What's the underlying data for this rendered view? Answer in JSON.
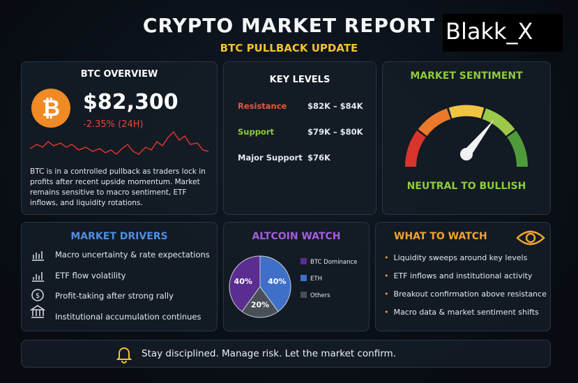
{
  "header": {
    "title": "CRYPTO MARKET REPORT",
    "subtitle": "BTC PULLBACK UPDATE",
    "watermark": "Blakk_X"
  },
  "btc_overview": {
    "title": "BTC OVERVIEW",
    "price": "$82,300",
    "change": "-2.35% (24H)",
    "text": "BTC is in a controlled pullback as traders lock in profits after recent upside momentum. Market remains sensitive to macro sentiment, ETF inflows, and liquidity rotations."
  },
  "key_levels": {
    "title": "KEY LEVELS",
    "rows": [
      [
        "Resistance",
        "$82K – $84K"
      ],
      [
        "Support",
        "$79K – $80K"
      ],
      [
        "Major Support",
        "$76K"
      ]
    ]
  },
  "market_sentiment": {
    "title": "MARKET SENTIMENT",
    "reading": "NEUTRAL TO BULLISH"
  },
  "market_drivers": {
    "title": "MARKET DRIVERS",
    "items": [
      "Macro uncertainty & rate expectations",
      "ETF flow volatility",
      "Profit-taking after strong rally",
      "Institutional accumulation continues"
    ]
  },
  "altcoin_watch": {
    "title": "ALTCOIN WATCH",
    "chart_data": {
      "type": "pie",
      "categories": [
        "BTC Dominance",
        "ETH",
        "Others"
      ],
      "values": [
        40,
        40,
        20
      ],
      "value_labels": [
        "40%",
        "40%",
        "20%"
      ],
      "colors": [
        "#5b2d91",
        "#3f6fc7",
        "#4a4f57"
      ]
    }
  },
  "what_to_watch": {
    "title": "WHAT TO WATCH",
    "items": [
      "Liquidity sweeps around key levels",
      "ETF inflows and institutional activity",
      "Breakout confirmation above resistance",
      "Macro data & market sentiment shifts"
    ]
  },
  "footer": {
    "text": "Stay disciplined. Manage risk. Let the market confirm."
  }
}
